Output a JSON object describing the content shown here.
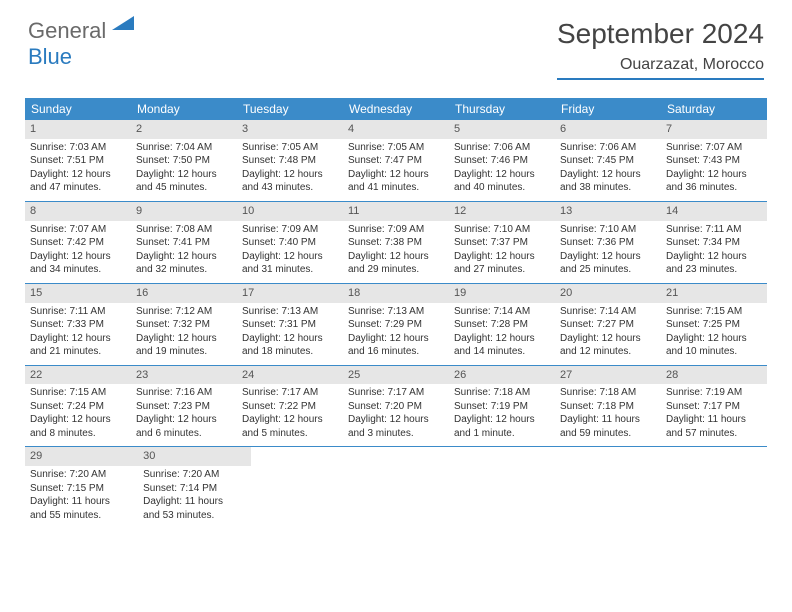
{
  "logo": {
    "general": "General",
    "blue": "Blue"
  },
  "title": "September 2024",
  "location": "Ouarzazat, Morocco",
  "colors": {
    "header_blue": "#3b8bc9",
    "accent_blue": "#2a7bbf",
    "daynum_bg": "#e6e6e6",
    "text": "#333333",
    "logo_gray": "#6a6a6a"
  },
  "weekdays": [
    "Sunday",
    "Monday",
    "Tuesday",
    "Wednesday",
    "Thursday",
    "Friday",
    "Saturday"
  ],
  "weeks": [
    [
      {
        "n": "1",
        "sr": "Sunrise: 7:03 AM",
        "ss": "Sunset: 7:51 PM",
        "d1": "Daylight: 12 hours",
        "d2": "and 47 minutes."
      },
      {
        "n": "2",
        "sr": "Sunrise: 7:04 AM",
        "ss": "Sunset: 7:50 PM",
        "d1": "Daylight: 12 hours",
        "d2": "and 45 minutes."
      },
      {
        "n": "3",
        "sr": "Sunrise: 7:05 AM",
        "ss": "Sunset: 7:48 PM",
        "d1": "Daylight: 12 hours",
        "d2": "and 43 minutes."
      },
      {
        "n": "4",
        "sr": "Sunrise: 7:05 AM",
        "ss": "Sunset: 7:47 PM",
        "d1": "Daylight: 12 hours",
        "d2": "and 41 minutes."
      },
      {
        "n": "5",
        "sr": "Sunrise: 7:06 AM",
        "ss": "Sunset: 7:46 PM",
        "d1": "Daylight: 12 hours",
        "d2": "and 40 minutes."
      },
      {
        "n": "6",
        "sr": "Sunrise: 7:06 AM",
        "ss": "Sunset: 7:45 PM",
        "d1": "Daylight: 12 hours",
        "d2": "and 38 minutes."
      },
      {
        "n": "7",
        "sr": "Sunrise: 7:07 AM",
        "ss": "Sunset: 7:43 PM",
        "d1": "Daylight: 12 hours",
        "d2": "and 36 minutes."
      }
    ],
    [
      {
        "n": "8",
        "sr": "Sunrise: 7:07 AM",
        "ss": "Sunset: 7:42 PM",
        "d1": "Daylight: 12 hours",
        "d2": "and 34 minutes."
      },
      {
        "n": "9",
        "sr": "Sunrise: 7:08 AM",
        "ss": "Sunset: 7:41 PM",
        "d1": "Daylight: 12 hours",
        "d2": "and 32 minutes."
      },
      {
        "n": "10",
        "sr": "Sunrise: 7:09 AM",
        "ss": "Sunset: 7:40 PM",
        "d1": "Daylight: 12 hours",
        "d2": "and 31 minutes."
      },
      {
        "n": "11",
        "sr": "Sunrise: 7:09 AM",
        "ss": "Sunset: 7:38 PM",
        "d1": "Daylight: 12 hours",
        "d2": "and 29 minutes."
      },
      {
        "n": "12",
        "sr": "Sunrise: 7:10 AM",
        "ss": "Sunset: 7:37 PM",
        "d1": "Daylight: 12 hours",
        "d2": "and 27 minutes."
      },
      {
        "n": "13",
        "sr": "Sunrise: 7:10 AM",
        "ss": "Sunset: 7:36 PM",
        "d1": "Daylight: 12 hours",
        "d2": "and 25 minutes."
      },
      {
        "n": "14",
        "sr": "Sunrise: 7:11 AM",
        "ss": "Sunset: 7:34 PM",
        "d1": "Daylight: 12 hours",
        "d2": "and 23 minutes."
      }
    ],
    [
      {
        "n": "15",
        "sr": "Sunrise: 7:11 AM",
        "ss": "Sunset: 7:33 PM",
        "d1": "Daylight: 12 hours",
        "d2": "and 21 minutes."
      },
      {
        "n": "16",
        "sr": "Sunrise: 7:12 AM",
        "ss": "Sunset: 7:32 PM",
        "d1": "Daylight: 12 hours",
        "d2": "and 19 minutes."
      },
      {
        "n": "17",
        "sr": "Sunrise: 7:13 AM",
        "ss": "Sunset: 7:31 PM",
        "d1": "Daylight: 12 hours",
        "d2": "and 18 minutes."
      },
      {
        "n": "18",
        "sr": "Sunrise: 7:13 AM",
        "ss": "Sunset: 7:29 PM",
        "d1": "Daylight: 12 hours",
        "d2": "and 16 minutes."
      },
      {
        "n": "19",
        "sr": "Sunrise: 7:14 AM",
        "ss": "Sunset: 7:28 PM",
        "d1": "Daylight: 12 hours",
        "d2": "and 14 minutes."
      },
      {
        "n": "20",
        "sr": "Sunrise: 7:14 AM",
        "ss": "Sunset: 7:27 PM",
        "d1": "Daylight: 12 hours",
        "d2": "and 12 minutes."
      },
      {
        "n": "21",
        "sr": "Sunrise: 7:15 AM",
        "ss": "Sunset: 7:25 PM",
        "d1": "Daylight: 12 hours",
        "d2": "and 10 minutes."
      }
    ],
    [
      {
        "n": "22",
        "sr": "Sunrise: 7:15 AM",
        "ss": "Sunset: 7:24 PM",
        "d1": "Daylight: 12 hours",
        "d2": "and 8 minutes."
      },
      {
        "n": "23",
        "sr": "Sunrise: 7:16 AM",
        "ss": "Sunset: 7:23 PM",
        "d1": "Daylight: 12 hours",
        "d2": "and 6 minutes."
      },
      {
        "n": "24",
        "sr": "Sunrise: 7:17 AM",
        "ss": "Sunset: 7:22 PM",
        "d1": "Daylight: 12 hours",
        "d2": "and 5 minutes."
      },
      {
        "n": "25",
        "sr": "Sunrise: 7:17 AM",
        "ss": "Sunset: 7:20 PM",
        "d1": "Daylight: 12 hours",
        "d2": "and 3 minutes."
      },
      {
        "n": "26",
        "sr": "Sunrise: 7:18 AM",
        "ss": "Sunset: 7:19 PM",
        "d1": "Daylight: 12 hours",
        "d2": "and 1 minute."
      },
      {
        "n": "27",
        "sr": "Sunrise: 7:18 AM",
        "ss": "Sunset: 7:18 PM",
        "d1": "Daylight: 11 hours",
        "d2": "and 59 minutes."
      },
      {
        "n": "28",
        "sr": "Sunrise: 7:19 AM",
        "ss": "Sunset: 7:17 PM",
        "d1": "Daylight: 11 hours",
        "d2": "and 57 minutes."
      }
    ],
    [
      {
        "n": "29",
        "sr": "Sunrise: 7:20 AM",
        "ss": "Sunset: 7:15 PM",
        "d1": "Daylight: 11 hours",
        "d2": "and 55 minutes."
      },
      {
        "n": "30",
        "sr": "Sunrise: 7:20 AM",
        "ss": "Sunset: 7:14 PM",
        "d1": "Daylight: 11 hours",
        "d2": "and 53 minutes."
      },
      null,
      null,
      null,
      null,
      null
    ]
  ]
}
